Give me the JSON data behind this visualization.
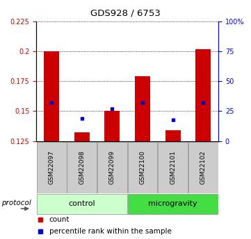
{
  "title": "GDS928 / 6753",
  "samples": [
    "GSM22097",
    "GSM22098",
    "GSM22099",
    "GSM22100",
    "GSM22101",
    "GSM22102"
  ],
  "red_values": [
    0.2,
    0.132,
    0.15,
    0.179,
    0.134,
    0.202
  ],
  "blue_values": [
    0.157,
    0.144,
    0.152,
    0.157,
    0.143,
    0.157
  ],
  "ylim": [
    0.125,
    0.225
  ],
  "yticks_left": [
    0.125,
    0.15,
    0.175,
    0.2,
    0.225
  ],
  "yticks_right": [
    0,
    25,
    50,
    75,
    100
  ],
  "left_color": "#cc0000",
  "right_color": "#0000cc",
  "bar_color": "#cc0000",
  "dot_color": "#0000cc",
  "label_bg": "#cccccc",
  "control_color": "#ccffcc",
  "microgravity_color": "#44dd44",
  "bar_width": 0.5,
  "legend_count_color": "#cc0000",
  "legend_percentile_color": "#0000cc"
}
